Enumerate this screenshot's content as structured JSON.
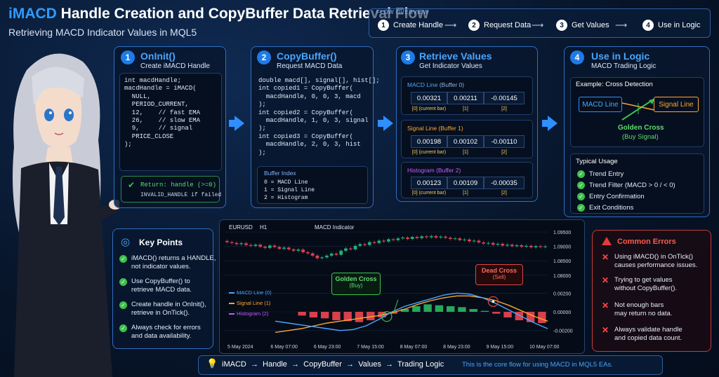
{
  "header": {
    "title_highlight": "iMACD",
    "title_rest": " Handle Creation and CopyBuffer Data Retrieval Flow",
    "subtitle": "Retrieving MACD Indicator Values in MQL5"
  },
  "flow_overview": {
    "label": "FLOW OVERVIEW",
    "steps": [
      {
        "num": "1",
        "label": "Create Handle"
      },
      {
        "num": "2",
        "label": "Request Data"
      },
      {
        "num": "3",
        "label": "Get Values"
      },
      {
        "num": "4",
        "label": "Use in Logic"
      }
    ]
  },
  "step1": {
    "num": "1",
    "title": "OnInit()",
    "sub": "Create iMACD Handle",
    "code": [
      "int macdHandle;",
      "",
      "macdHandle = iMACD(",
      "  NULL,",
      "  PERIOD_CURRENT,",
      "  12,    // fast EMA",
      "  26,    // slow EMA",
      "  9,     // signal",
      "  PRICE_CLOSE",
      ");"
    ],
    "return_label": "Return: handle (>=0)",
    "return_sub": "INVALID_HANDLE if failed"
  },
  "step2": {
    "num": "2",
    "title": "CopyBuffer()",
    "sub": "Request MACD Data",
    "code": [
      "double macd[], signal[], hist[];",
      "",
      "int copied1 = CopyBuffer(",
      "  macdHandle, 0, 0, 3, macd",
      ");",
      "int copied2 = CopyBuffer(",
      "  macdHandle, 1, 0, 3, signal",
      ");",
      "int copied3 = CopyBuffer(",
      "  macdHandle, 2, 0, 3, hist",
      ");"
    ],
    "buffer_title": "Buffer Index",
    "buffers": [
      "0 = MACD Line",
      "1 = Signal Line",
      "2 = Histogram"
    ]
  },
  "step3": {
    "num": "3",
    "title": "Retrieve Values",
    "sub": "Get Indicator Values",
    "groups": [
      {
        "name": "MACD Line",
        "buf": " (Buffer 0)",
        "color": "#4aa8ff",
        "values": [
          "0.00321",
          "0.00211",
          "-0.00145"
        ],
        "labels": [
          "[0] (current bar)",
          "[1]",
          "[2]"
        ]
      },
      {
        "name": "Signal Line",
        "buf": " (Buffer 1)",
        "color": "#ffa630",
        "values": [
          "0.00198",
          "0.00102",
          "-0.00110"
        ],
        "labels": [
          "[0] (current bar)",
          "[1]",
          "[2]"
        ]
      },
      {
        "name": "Histogram",
        "buf": " (Buffer 2)",
        "color": "#c45cff",
        "values": [
          "0.00123",
          "0.00109",
          "-0.00035"
        ],
        "labels": [
          "[0] (current bar)",
          "[1]",
          "[2]"
        ]
      }
    ]
  },
  "step4": {
    "num": "4",
    "title": "Use in Logic",
    "sub": "MACD Trading Logic",
    "example_title": "Example: Cross Detection",
    "macd_box": "MACD Line",
    "signal_box": "Signal Line",
    "golden": "Golden Cross",
    "golden_sub": "(Buy Signal)",
    "usage_title": "Typical Usage",
    "usage": [
      "Trend Entry",
      "Trend Filter (MACD > 0 / < 0)",
      "Entry Confirmation",
      "Exit Conditions"
    ]
  },
  "key_points": {
    "title": "Key Points",
    "items": [
      [
        "iMACD() returns a HANDLE,",
        "not indicator values."
      ],
      [
        "Use CopyBuffer() to",
        "retrieve MACD data."
      ],
      [
        "Create handle in OnInit(),",
        "retrieve in OnTick()."
      ],
      [
        "Always check for errors",
        "and data availability."
      ]
    ]
  },
  "chart_panel": {
    "symbol": "EURUSD",
    "timeframe": "H1",
    "indicator_title": "MACD Indicator",
    "legend": [
      "MACD Line (0)",
      "Signal Line (1)",
      "Histogram (2)"
    ],
    "golden_label": "Golden Cross",
    "golden_sub": "(Buy)",
    "dead_label": "Dead Cross",
    "dead_sub": "(Sell)"
  },
  "chart_data": {
    "type": "line",
    "price_ticks": [
      "1.09500",
      "1.09000",
      "1.08500",
      "1.08000"
    ],
    "macd_ticks": [
      "0.00200",
      "0.00000",
      "-0.00200"
    ],
    "x_ticks": [
      "5 May 2024",
      "6 May 07:00",
      "6 May 23:00",
      "7 May 15:00",
      "8 May 07:00",
      "8 May 23:00",
      "9 May 15:00",
      "10 May 07:00"
    ],
    "price_range": [
      1.078,
      1.096
    ],
    "macd_range": [
      -0.0027,
      0.0027
    ],
    "price_close": [
      1.0915,
      1.0912,
      1.0908,
      1.0911,
      1.0905,
      1.0902,
      1.0906,
      1.0899,
      1.0895,
      1.0903,
      1.0898,
      1.0892,
      1.0896,
      1.089,
      1.0885,
      1.0889,
      1.088,
      1.0876,
      1.0868,
      1.0859,
      1.0862,
      1.0868,
      1.0875,
      1.0871,
      1.0885,
      1.0893,
      1.089,
      1.0902,
      1.0908,
      1.0905,
      1.0915,
      1.0912,
      1.092,
      1.0917,
      1.0925,
      1.0922,
      1.0928,
      1.0931,
      1.0926,
      1.0933,
      1.0929,
      1.0935,
      1.0932,
      1.0936,
      1.0931,
      1.0934,
      1.093,
      1.0926,
      1.0928,
      1.0922,
      1.0924,
      1.0918,
      1.092,
      1.0914,
      1.091,
      1.0912,
      1.0906,
      1.0909,
      1.0903,
      1.0906,
      1.0901,
      1.0904,
      1.0899,
      1.0902,
      1.0897,
      1.0901,
      1.0898,
      1.09
    ],
    "macd_line": [
      -0.001,
      -0.0012,
      -0.0014,
      -0.0016,
      -0.0018,
      -0.002,
      -0.0019,
      -0.0015,
      -0.0008,
      0.0,
      0.0006,
      0.001,
      0.0014,
      0.0018,
      0.002,
      0.0019,
      0.0015,
      0.0009,
      0.0002,
      -0.0005,
      -0.0012,
      -0.0018
    ],
    "signal_line": [
      -0.0022,
      -0.002,
      -0.0018,
      -0.0015,
      -0.0012,
      -0.001,
      -0.0008,
      -0.0006,
      -0.0004,
      -0.0001,
      0.0003,
      0.0008,
      0.0012,
      0.0015,
      0.0017,
      0.0017,
      0.0015,
      0.0012,
      0.0007,
      0.0001,
      -0.0005,
      -0.001
    ],
    "histogram": [
      -0.0004,
      -0.0006,
      -0.0007,
      -0.0009,
      -0.001,
      -0.0011,
      -0.0009,
      -0.0006,
      -0.0002,
      0.0003,
      0.0006,
      0.0008,
      0.0007,
      0.0006,
      0.0005,
      0.0003,
      0.0001,
      -0.0002,
      -0.0006,
      -0.0009,
      -0.0011,
      -0.0012
    ]
  },
  "common_errors": {
    "title": "Common Errors",
    "items": [
      [
        "Using iMACD() in OnTick()",
        "causes performance issues."
      ],
      [
        "Trying to get values",
        "without CopyBuffer()."
      ],
      [
        "Not enough bars",
        "may return no data."
      ],
      [
        "Always validate handle",
        "and copied data count."
      ]
    ]
  },
  "footer": {
    "flow": "iMACD  →  Handle  →  CopyBuffer  →  Values  →  Trading Logic",
    "note": "This is the core flow for using MACD in MQL5 EAs."
  }
}
